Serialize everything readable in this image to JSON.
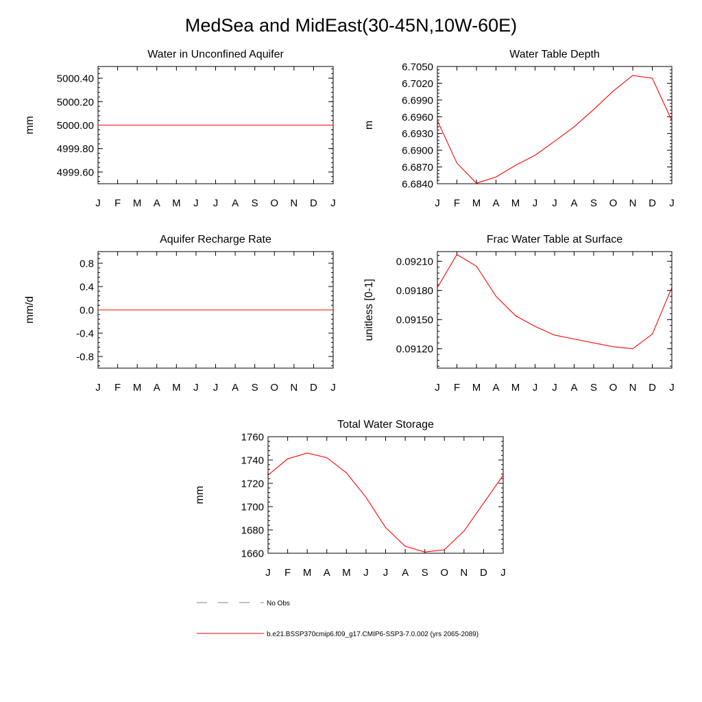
{
  "title": "MedSea and MidEast(30-45N,10W-60E)",
  "months": [
    "J",
    "F",
    "M",
    "A",
    "M",
    "J",
    "J",
    "A",
    "S",
    "O",
    "N",
    "D",
    "J"
  ],
  "legend": {
    "obs_label": "No Obs",
    "model_label": "b.e21.BSSP370cmip6.f09_g17.CMIP6-SSP3-7.0.002 (yrs 2065-2089)",
    "model_color": "#ff0000",
    "obs_color": "#808080"
  },
  "chart_data": [
    {
      "type": "line",
      "title": "Water in Unconfined Aquifer",
      "ylabel": "mm",
      "ylim": [
        4999.5,
        5000.5
      ],
      "yticks": [
        4999.6,
        4999.8,
        5000.0,
        5000.2,
        5000.4
      ],
      "ytick_labels": [
        "4999.60",
        "4999.80",
        "5000.00",
        "5000.20",
        "5000.40"
      ],
      "x": [
        "J",
        "F",
        "M",
        "A",
        "M",
        "J",
        "J",
        "A",
        "S",
        "O",
        "N",
        "D",
        "J"
      ],
      "values": [
        5000,
        5000,
        5000,
        5000,
        5000,
        5000,
        5000,
        5000,
        5000,
        5000,
        5000,
        5000,
        5000
      ]
    },
    {
      "type": "line",
      "title": "Water Table Depth",
      "ylabel": "m",
      "ylim": [
        6.684,
        6.705
      ],
      "yticks": [
        6.684,
        6.687,
        6.69,
        6.693,
        6.696,
        6.699,
        6.702,
        6.705
      ],
      "ytick_labels": [
        "6.6840",
        "6.6870",
        "6.6900",
        "6.6930",
        "6.6960",
        "6.6990",
        "6.7020",
        "6.7050"
      ],
      "x": [
        "J",
        "F",
        "M",
        "A",
        "M",
        "J",
        "J",
        "A",
        "S",
        "O",
        "N",
        "D",
        "J"
      ],
      "values": [
        6.6953,
        6.6877,
        6.6841,
        6.6852,
        6.6873,
        6.6891,
        6.6916,
        6.6942,
        6.6973,
        6.7006,
        6.7034,
        6.7029,
        6.6953
      ]
    },
    {
      "type": "line",
      "title": "Aquifer Recharge Rate",
      "ylabel": "mm/d",
      "ylim": [
        -1.0,
        1.0
      ],
      "yticks": [
        -0.8,
        -0.4,
        0.0,
        0.4,
        0.8
      ],
      "ytick_labels": [
        "-0.8",
        "-0.4",
        "0.0",
        "0.4",
        "0.8"
      ],
      "x": [
        "J",
        "F",
        "M",
        "A",
        "M",
        "J",
        "J",
        "A",
        "S",
        "O",
        "N",
        "D",
        "J"
      ],
      "values": [
        0,
        0,
        0,
        0,
        0,
        0,
        0,
        0,
        0,
        0,
        0,
        0,
        0
      ]
    },
    {
      "type": "line",
      "title": "Frac Water Table at Surface",
      "ylabel": "unitless [0-1]",
      "ylim": [
        0.091,
        0.0922
      ],
      "yticks": [
        0.0912,
        0.0915,
        0.0918,
        0.0921
      ],
      "ytick_labels": [
        "0.09120",
        "0.09150",
        "0.09180",
        "0.09210"
      ],
      "x": [
        "J",
        "F",
        "M",
        "A",
        "M",
        "J",
        "J",
        "A",
        "S",
        "O",
        "N",
        "D",
        "J"
      ],
      "values": [
        0.09183,
        0.09217,
        0.09205,
        0.09174,
        0.09154,
        0.09143,
        0.09134,
        0.0913,
        0.09126,
        0.09122,
        0.0912,
        0.09135,
        0.09183
      ]
    },
    {
      "type": "line",
      "title": "Total Water Storage",
      "ylabel": "mm",
      "ylim": [
        1660,
        1760
      ],
      "yticks": [
        1660,
        1680,
        1700,
        1720,
        1740,
        1760
      ],
      "ytick_labels": [
        "1660",
        "1680",
        "1700",
        "1720",
        "1740",
        "1760"
      ],
      "x": [
        "J",
        "F",
        "M",
        "A",
        "M",
        "J",
        "J",
        "A",
        "S",
        "O",
        "N",
        "D",
        "J"
      ],
      "values": [
        1727,
        1741,
        1746,
        1742,
        1729,
        1708,
        1682,
        1666,
        1661,
        1663,
        1679,
        1703,
        1727
      ]
    }
  ]
}
